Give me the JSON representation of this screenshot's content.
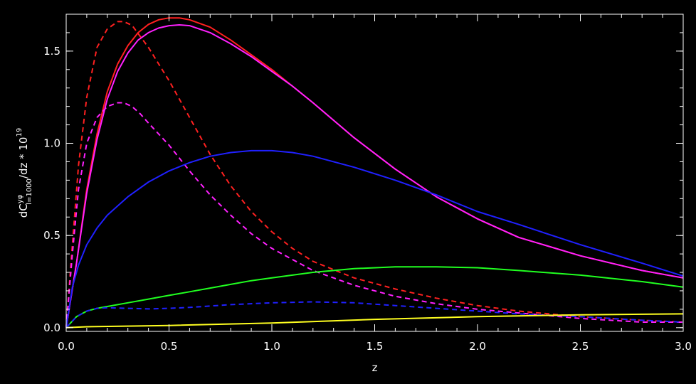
{
  "chart_data": {
    "type": "line",
    "xlabel": "z",
    "ylabel": {
      "prefix": "dC",
      "superscript": "yφ",
      "subscript": "l=1000",
      "suffix": "/dz * 10",
      "exponent": "19"
    },
    "xlim": [
      0.0,
      3.0
    ],
    "ylim": [
      -0.02,
      1.7
    ],
    "x_ticks": [
      "0.0",
      "0.5",
      "1.0",
      "1.5",
      "2.0",
      "2.5",
      "3.0"
    ],
    "y_ticks": [
      "0.0",
      "0.5",
      "1.0",
      "1.5"
    ],
    "grid": false,
    "background": "#000000",
    "series": [
      {
        "color": "#ff2020",
        "dash": "solid",
        "x": [
          0.0,
          0.05,
          0.1,
          0.15,
          0.2,
          0.25,
          0.3,
          0.35,
          0.4,
          0.45,
          0.5,
          0.55,
          0.6,
          0.7,
          0.8,
          0.9,
          1.0,
          1.1,
          1.2,
          1.4,
          1.6,
          1.8,
          2.0,
          2.2,
          2.5,
          2.8,
          3.0
        ],
        "y": [
          0.0,
          0.35,
          0.75,
          1.05,
          1.28,
          1.43,
          1.53,
          1.6,
          1.645,
          1.67,
          1.68,
          1.68,
          1.67,
          1.63,
          1.56,
          1.48,
          1.4,
          1.31,
          1.22,
          1.03,
          0.86,
          0.71,
          0.59,
          0.49,
          0.39,
          0.31,
          0.27
        ]
      },
      {
        "color": "#ff20ff",
        "dash": "solid",
        "x": [
          0.0,
          0.05,
          0.1,
          0.15,
          0.2,
          0.25,
          0.3,
          0.35,
          0.4,
          0.45,
          0.5,
          0.55,
          0.6,
          0.7,
          0.8,
          0.9,
          1.0,
          1.1,
          1.2,
          1.4,
          1.6,
          1.8,
          2.0,
          2.2,
          2.5,
          2.8,
          3.0
        ],
        "y": [
          0.0,
          0.35,
          0.73,
          1.02,
          1.24,
          1.39,
          1.49,
          1.56,
          1.6,
          1.625,
          1.638,
          1.642,
          1.638,
          1.6,
          1.54,
          1.47,
          1.39,
          1.31,
          1.22,
          1.03,
          0.86,
          0.71,
          0.59,
          0.49,
          0.39,
          0.31,
          0.27
        ]
      },
      {
        "color": "#ff2020",
        "dash": "dashed",
        "x": [
          0.0,
          0.03,
          0.06,
          0.1,
          0.15,
          0.2,
          0.25,
          0.28,
          0.32,
          0.36,
          0.4,
          0.45,
          0.5,
          0.6,
          0.7,
          0.8,
          0.9,
          1.0,
          1.1,
          1.2,
          1.4,
          1.6,
          1.8,
          2.0,
          2.2,
          2.5,
          2.8,
          3.0
        ],
        "y": [
          0.0,
          0.45,
          0.88,
          1.25,
          1.52,
          1.62,
          1.66,
          1.66,
          1.64,
          1.58,
          1.52,
          1.43,
          1.34,
          1.14,
          0.94,
          0.77,
          0.63,
          0.52,
          0.43,
          0.36,
          0.27,
          0.21,
          0.16,
          0.12,
          0.09,
          0.06,
          0.04,
          0.03
        ]
      },
      {
        "color": "#ff20ff",
        "dash": "dashed",
        "x": [
          0.0,
          0.03,
          0.06,
          0.1,
          0.15,
          0.2,
          0.25,
          0.28,
          0.32,
          0.36,
          0.4,
          0.45,
          0.5,
          0.6,
          0.7,
          0.8,
          0.9,
          1.0,
          1.1,
          1.2,
          1.4,
          1.6,
          1.8,
          2.0,
          2.2,
          2.5,
          2.8,
          3.0
        ],
        "y": [
          0.0,
          0.4,
          0.75,
          1.0,
          1.14,
          1.2,
          1.22,
          1.22,
          1.2,
          1.16,
          1.11,
          1.05,
          0.99,
          0.85,
          0.72,
          0.61,
          0.51,
          0.43,
          0.37,
          0.31,
          0.23,
          0.17,
          0.13,
          0.1,
          0.08,
          0.05,
          0.03,
          0.03
        ]
      },
      {
        "color": "#2020ff",
        "dash": "solid",
        "x": [
          0.0,
          0.03,
          0.06,
          0.1,
          0.15,
          0.2,
          0.3,
          0.4,
          0.5,
          0.6,
          0.7,
          0.8,
          0.9,
          1.0,
          1.1,
          1.2,
          1.4,
          1.6,
          1.8,
          2.0,
          2.2,
          2.5,
          2.8,
          3.0
        ],
        "y": [
          0.0,
          0.22,
          0.34,
          0.45,
          0.54,
          0.61,
          0.71,
          0.79,
          0.85,
          0.895,
          0.93,
          0.95,
          0.96,
          0.96,
          0.95,
          0.93,
          0.87,
          0.8,
          0.72,
          0.63,
          0.56,
          0.45,
          0.35,
          0.28
        ]
      },
      {
        "color": "#20ff20",
        "dash": "solid",
        "x": [
          0.0,
          0.05,
          0.1,
          0.15,
          0.2,
          0.3,
          0.4,
          0.5,
          0.6,
          0.7,
          0.8,
          0.9,
          1.0,
          1.2,
          1.4,
          1.6,
          1.8,
          2.0,
          2.2,
          2.5,
          2.8,
          3.0
        ],
        "y": [
          0.0,
          0.06,
          0.09,
          0.105,
          0.115,
          0.135,
          0.155,
          0.175,
          0.195,
          0.215,
          0.235,
          0.255,
          0.27,
          0.3,
          0.32,
          0.33,
          0.33,
          0.325,
          0.31,
          0.285,
          0.25,
          0.22
        ]
      },
      {
        "color": "#2020ff",
        "dash": "dashed",
        "x": [
          0.0,
          0.05,
          0.1,
          0.15,
          0.2,
          0.3,
          0.4,
          0.5,
          0.6,
          0.8,
          1.0,
          1.2,
          1.4,
          1.6,
          1.8,
          2.0,
          2.2,
          2.5,
          2.8,
          3.0
        ],
        "y": [
          0.0,
          0.06,
          0.09,
          0.105,
          0.108,
          0.105,
          0.102,
          0.105,
          0.11,
          0.125,
          0.135,
          0.14,
          0.135,
          0.12,
          0.105,
          0.09,
          0.075,
          0.06,
          0.04,
          0.03
        ]
      },
      {
        "color": "#ffff20",
        "dash": "solid",
        "x": [
          0.0,
          0.1,
          0.5,
          1.0,
          1.5,
          2.0,
          2.5,
          3.0
        ],
        "y": [
          0.0,
          0.005,
          0.012,
          0.025,
          0.045,
          0.06,
          0.07,
          0.075
        ]
      }
    ]
  }
}
